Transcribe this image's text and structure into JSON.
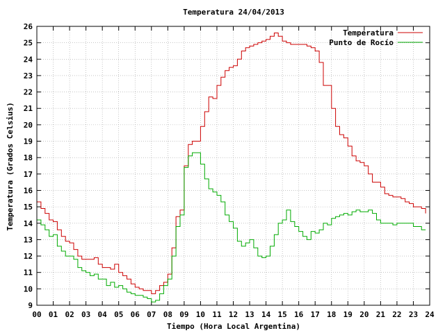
{
  "chart_data": {
    "type": "line",
    "title": "Temperatura 24/04/2013",
    "xlabel": "Tiempo (Hora Local Argentina)",
    "ylabel": "Temperatura (Grados Celsius)",
    "xlim": [
      0,
      24
    ],
    "ylim": [
      9,
      26
    ],
    "x_ticks": [
      "00",
      "01",
      "02",
      "03",
      "04",
      "05",
      "06",
      "07",
      "08",
      "09",
      "10",
      "11",
      "12",
      "13",
      "14",
      "15",
      "16",
      "17",
      "18",
      "19",
      "20",
      "21",
      "22",
      "23",
      "24"
    ],
    "y_ticks": [
      "9",
      "10",
      "11",
      "12",
      "13",
      "14",
      "15",
      "16",
      "17",
      "18",
      "19",
      "20",
      "21",
      "22",
      "23",
      "24",
      "25",
      "26"
    ],
    "grid": true,
    "legend_position": "top-right",
    "series": [
      {
        "name": "Temperatura",
        "color": "#cc0000",
        "x": [
          0,
          0.25,
          0.5,
          0.75,
          1,
          1.25,
          1.5,
          1.75,
          2,
          2.25,
          2.5,
          2.75,
          3,
          3.25,
          3.5,
          3.75,
          4,
          4.25,
          4.5,
          4.75,
          5,
          5.25,
          5.5,
          5.75,
          6,
          6.25,
          6.5,
          6.75,
          7,
          7.25,
          7.5,
          7.75,
          8,
          8.25,
          8.5,
          8.75,
          9,
          9.25,
          9.5,
          9.75,
          10,
          10.25,
          10.5,
          10.75,
          11,
          11.25,
          11.5,
          11.75,
          12,
          12.25,
          12.5,
          12.75,
          13,
          13.25,
          13.5,
          13.75,
          14,
          14.25,
          14.5,
          14.75,
          15,
          15.25,
          15.5,
          15.75,
          16,
          16.25,
          16.5,
          16.75,
          17,
          17.25,
          17.5,
          17.75,
          18,
          18.25,
          18.5,
          18.75,
          19,
          19.25,
          19.5,
          19.75,
          20,
          20.25,
          20.5,
          20.75,
          21,
          21.25,
          21.5,
          21.75,
          22,
          22.25,
          22.5,
          22.75,
          23,
          23.25,
          23.5,
          23.75
        ],
        "values": [
          15.3,
          14.9,
          14.6,
          14.2,
          14.1,
          13.6,
          13.2,
          12.9,
          12.8,
          12.4,
          12.0,
          11.8,
          11.8,
          11.8,
          11.9,
          11.5,
          11.3,
          11.3,
          11.2,
          11.5,
          11.0,
          10.8,
          10.6,
          10.3,
          10.1,
          10.0,
          9.9,
          9.9,
          9.7,
          9.9,
          10.2,
          10.4,
          10.9,
          12.5,
          14.4,
          14.8,
          17.5,
          18.8,
          19.0,
          19.0,
          19.9,
          20.8,
          21.7,
          21.6,
          22.4,
          22.9,
          23.3,
          23.5,
          23.6,
          24.0,
          24.5,
          24.7,
          24.8,
          24.9,
          25.0,
          25.1,
          25.2,
          25.4,
          25.6,
          25.4,
          25.1,
          25.0,
          24.9,
          24.9,
          24.9,
          24.9,
          24.8,
          24.7,
          24.5,
          23.8,
          22.4,
          22.4,
          21.0,
          19.9,
          19.4,
          19.2,
          18.7,
          18.1,
          17.8,
          17.7,
          17.5,
          17.0,
          16.5,
          16.5,
          16.2,
          15.8,
          15.7,
          15.6,
          15.6,
          15.5,
          15.3,
          15.2,
          15.0,
          15.0,
          14.9,
          14.6
        ]
      },
      {
        "name": "Punto de Rocío",
        "color": "#00aa00",
        "x": [
          0,
          0.25,
          0.5,
          0.75,
          1,
          1.25,
          1.5,
          1.75,
          2,
          2.25,
          2.5,
          2.75,
          3,
          3.25,
          3.5,
          3.75,
          4,
          4.25,
          4.5,
          4.75,
          5,
          5.25,
          5.5,
          5.75,
          6,
          6.25,
          6.5,
          6.75,
          7,
          7.25,
          7.5,
          7.75,
          8,
          8.25,
          8.5,
          8.75,
          9,
          9.25,
          9.5,
          9.75,
          10,
          10.25,
          10.5,
          10.75,
          11,
          11.25,
          11.5,
          11.75,
          12,
          12.25,
          12.5,
          12.75,
          13,
          13.25,
          13.5,
          13.75,
          14,
          14.25,
          14.5,
          14.75,
          15,
          15.25,
          15.5,
          15.75,
          16,
          16.25,
          16.5,
          16.75,
          17,
          17.25,
          17.5,
          17.75,
          18,
          18.25,
          18.5,
          18.75,
          19,
          19.25,
          19.5,
          19.75,
          20,
          20.25,
          20.5,
          20.75,
          21,
          21.25,
          21.5,
          21.75,
          22,
          22.25,
          22.5,
          22.75,
          23,
          23.25,
          23.5,
          23.75
        ],
        "values": [
          14.2,
          13.9,
          13.6,
          13.2,
          13.3,
          12.6,
          12.3,
          12.0,
          12.0,
          11.8,
          11.3,
          11.1,
          11.0,
          10.8,
          10.9,
          10.6,
          10.6,
          10.2,
          10.4,
          10.1,
          10.2,
          10.0,
          9.8,
          9.7,
          9.6,
          9.6,
          9.5,
          9.4,
          9.2,
          9.3,
          9.7,
          10.2,
          10.6,
          12.0,
          13.8,
          14.5,
          17.4,
          18.1,
          18.3,
          18.3,
          17.6,
          16.7,
          16.1,
          15.9,
          15.7,
          15.3,
          14.5,
          14.1,
          13.7,
          12.9,
          12.6,
          12.8,
          13.0,
          12.5,
          12.0,
          11.9,
          12.0,
          12.6,
          13.3,
          14.0,
          14.2,
          14.8,
          14.1,
          13.8,
          13.5,
          13.2,
          13.0,
          13.5,
          13.4,
          13.6,
          14.0,
          13.9,
          14.3,
          14.4,
          14.5,
          14.6,
          14.5,
          14.7,
          14.8,
          14.7,
          14.7,
          14.8,
          14.6,
          14.2,
          14.0,
          14.0,
          14.0,
          13.9,
          14.0,
          14.0,
          14.0,
          14.0,
          13.8,
          13.8,
          13.6,
          13.6
        ]
      }
    ]
  }
}
